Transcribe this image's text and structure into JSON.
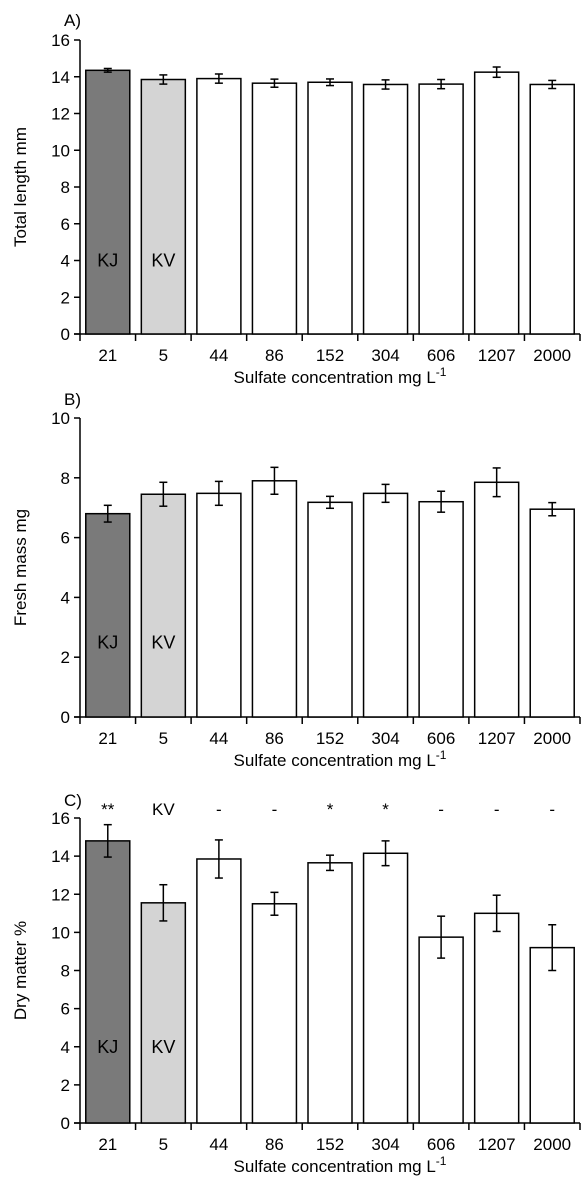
{
  "figure": {
    "xlabel_prefix": "Sulfate concentration  mg L",
    "xlabel_sup": "-1"
  },
  "chart_data": [
    {
      "type": "bar",
      "panel_label": "A)",
      "ylabel": "Total length mm",
      "ylim": [
        0,
        16
      ],
      "yticks": [
        0,
        2,
        4,
        6,
        8,
        10,
        12,
        14,
        16
      ],
      "categories": [
        "21",
        "5",
        "44",
        "86",
        "152",
        "304",
        "606",
        "1207",
        "2000"
      ],
      "values": [
        14.35,
        13.85,
        13.9,
        13.65,
        13.7,
        13.58,
        13.6,
        14.25,
        13.58
      ],
      "errors": [
        0.1,
        0.25,
        0.25,
        0.22,
        0.18,
        0.25,
        0.25,
        0.28,
        0.22
      ],
      "bar_labels": [
        "KJ",
        "KV",
        "",
        "",
        "",
        "",
        "",
        "",
        ""
      ],
      "significance": [],
      "colors": {
        "kj": "#7a7a7a",
        "kv": "#d4d4d4",
        "treatment": "#ffffff"
      }
    },
    {
      "type": "bar",
      "panel_label": "B)",
      "ylabel": "Fresh mass mg",
      "ylim": [
        0,
        10
      ],
      "yticks": [
        0,
        2,
        4,
        6,
        8,
        10
      ],
      "categories": [
        "21",
        "5",
        "44",
        "86",
        "152",
        "304",
        "606",
        "1207",
        "2000"
      ],
      "values": [
        6.8,
        7.45,
        7.48,
        7.9,
        7.18,
        7.48,
        7.2,
        7.85,
        6.95
      ],
      "errors": [
        0.28,
        0.4,
        0.4,
        0.45,
        0.2,
        0.3,
        0.35,
        0.48,
        0.22
      ],
      "bar_labels": [
        "KJ",
        "KV",
        "",
        "",
        "",
        "",
        "",
        "",
        ""
      ],
      "significance": [],
      "colors": {
        "kj": "#7a7a7a",
        "kv": "#d4d4d4",
        "treatment": "#ffffff"
      }
    },
    {
      "type": "bar",
      "panel_label": "C)",
      "ylabel": "Dry matter %",
      "ylim": [
        0,
        16
      ],
      "yticks": [
        0,
        2,
        4,
        6,
        8,
        10,
        12,
        14,
        16
      ],
      "categories": [
        "21",
        "5",
        "44",
        "86",
        "152",
        "304",
        "606",
        "1207",
        "2000"
      ],
      "values": [
        14.8,
        11.55,
        13.85,
        11.5,
        13.65,
        14.15,
        9.75,
        11.0,
        9.2
      ],
      "errors": [
        0.85,
        0.95,
        1.0,
        0.6,
        0.4,
        0.65,
        1.1,
        0.95,
        1.2
      ],
      "bar_labels": [
        "KJ",
        "KV",
        "",
        "",
        "",
        "",
        "",
        "",
        ""
      ],
      "significance": [
        "**",
        "KV",
        "-",
        "-",
        "*",
        "*",
        "-",
        "-",
        "-"
      ],
      "colors": {
        "kj": "#7a7a7a",
        "kv": "#d4d4d4",
        "treatment": "#ffffff"
      }
    }
  ]
}
